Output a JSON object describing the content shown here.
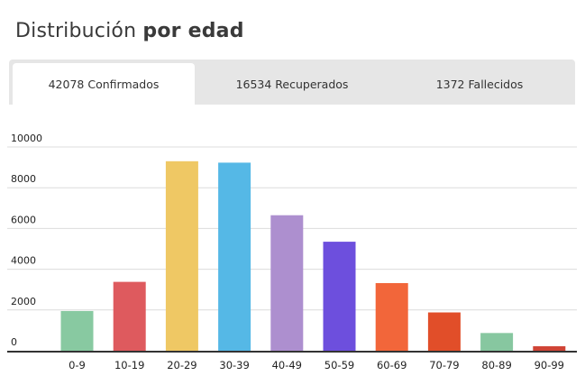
{
  "title": {
    "normal": "Distribución",
    "bold": "por edad"
  },
  "tabs": [
    {
      "label": "42078 Confirmados",
      "active": true
    },
    {
      "label": "16534 Recuperados",
      "active": false
    },
    {
      "label": "1372 Fallecidos",
      "active": false
    }
  ],
  "chart_data": {
    "type": "bar",
    "title": "",
    "xlabel": "",
    "ylabel": "",
    "ylim": [
      0,
      10000
    ],
    "yticks": [
      0,
      2000,
      4000,
      6000,
      8000,
      10000
    ],
    "grid": true,
    "categories": [
      "0-9",
      "10-19",
      "20-29",
      "30-39",
      "40-49",
      "50-59",
      "60-69",
      "70-79",
      "80-89",
      "90-99"
    ],
    "values": [
      1950,
      3380,
      9300,
      9230,
      6650,
      5350,
      3320,
      1880,
      870,
      220
    ],
    "colors": [
      "#88c9a1",
      "#de5a5e",
      "#efc864",
      "#55b8e6",
      "#ad8fcf",
      "#6d4fdd",
      "#f2663a",
      "#e14e29",
      "#87c7a0",
      "#d04435"
    ]
  }
}
